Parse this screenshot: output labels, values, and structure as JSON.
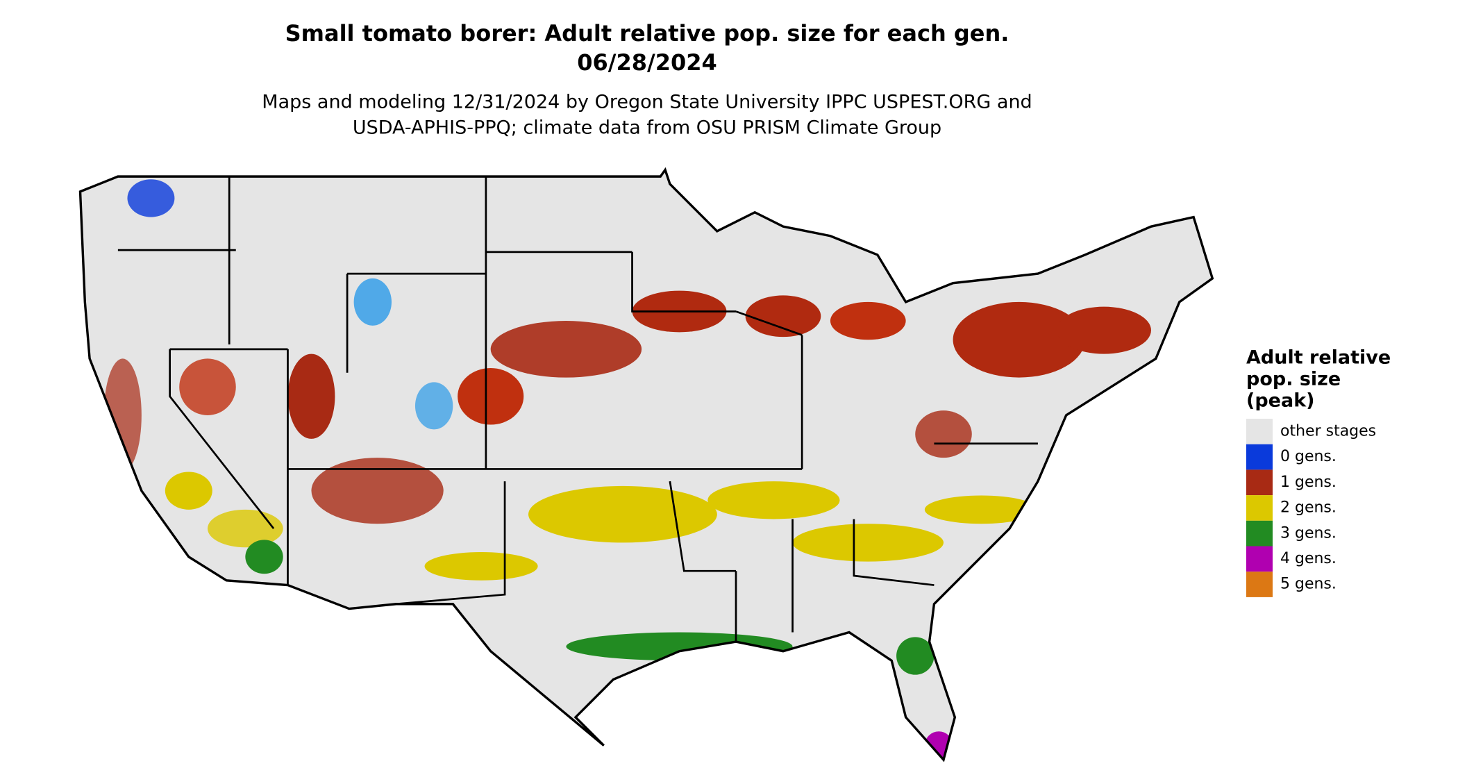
{
  "title": [
    "Small tomato borer: Adult relative pop. size for each gen.",
    "06/28/2024"
  ],
  "subtitle": [
    "Maps and modeling 12/31/2024 by Oregon State University IPPC USPEST.ORG and",
    "USDA-APHIS-PPQ; climate data from OSU PRISM Climate Group"
  ],
  "legend": {
    "title": [
      "Adult relative",
      "pop. size",
      "(peak)"
    ],
    "items": [
      {
        "label": "other stages",
        "color": "#e5e5e5"
      },
      {
        "label": "0 gens.",
        "color": "#0a3adb"
      },
      {
        "label": "1 gens.",
        "color": "#a82a14"
      },
      {
        "label": "2 gens.",
        "color": "#dcc800"
      },
      {
        "label": "3 gens.",
        "color": "#228b22"
      },
      {
        "label": "4 gens.",
        "color": "#b000b0"
      },
      {
        "label": "5 gens.",
        "color": "#dc7814"
      }
    ]
  }
}
